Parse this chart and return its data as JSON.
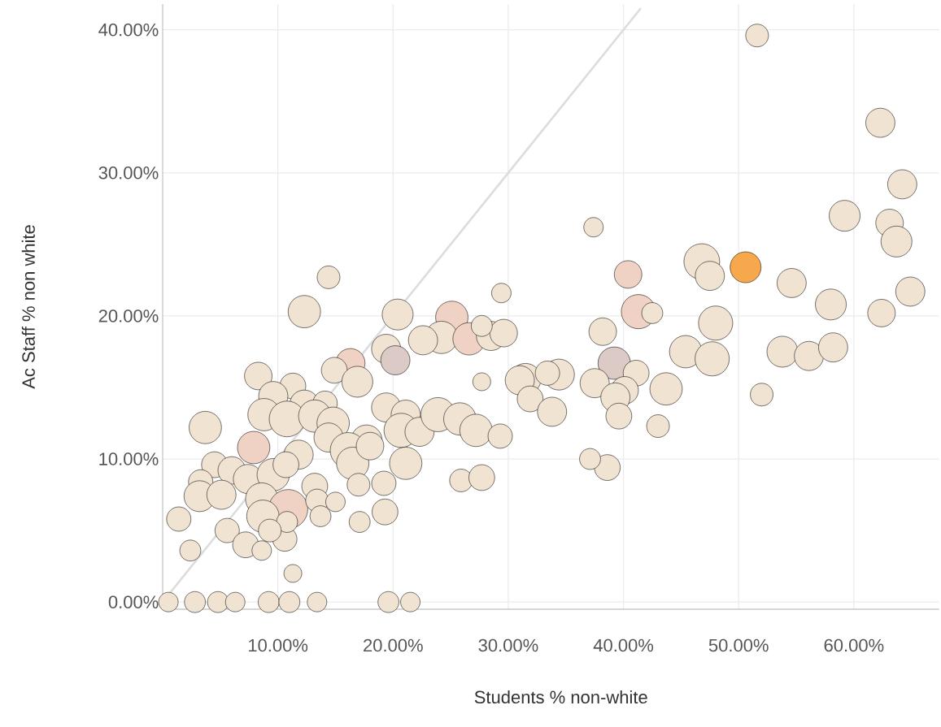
{
  "chart_data": {
    "type": "bubble",
    "xlabel": "Students % non-white",
    "ylabel": "Ac Staff % non white",
    "xlim": [
      0,
      67.4
    ],
    "ylim": [
      -0.5,
      41.8
    ],
    "xticks": [
      {
        "value": 10,
        "label": "10.00%"
      },
      {
        "value": 20,
        "label": "20.00%"
      },
      {
        "value": 30,
        "label": "30.00%"
      },
      {
        "value": 40,
        "label": "40.00%"
      },
      {
        "value": 50,
        "label": "50.00%"
      },
      {
        "value": 60,
        "label": "60.00%"
      }
    ],
    "yticks": [
      {
        "value": 0,
        "label": "0.00%"
      },
      {
        "value": 10,
        "label": "10.00%"
      },
      {
        "value": 20,
        "label": "20.00%"
      },
      {
        "value": 30,
        "label": "30.00%"
      },
      {
        "value": 40,
        "label": "40.00%"
      }
    ],
    "grid": true,
    "series": [
      {
        "x": [
          51.6,
          62.3,
          64.2,
          59.2,
          63.1,
          63.7,
          37.4,
          46.8,
          47.5,
          50.6,
          40.4,
          54.6,
          64.9,
          58.0,
          62.4,
          41.3,
          42.5,
          29.4,
          14.4,
          12.3,
          20.4,
          48.0,
          38.2,
          25.1,
          24.2,
          22.6,
          26.6,
          28.5,
          29.6,
          27.7,
          19.4,
          45.4,
          47.7,
          53.8,
          56.1,
          58.2,
          39.2,
          41.1,
          20.2,
          16.3,
          14.9,
          16.9,
          8.3,
          31.5,
          34.4,
          33.4,
          31.0,
          27.7,
          37.5,
          43.7,
          40.1,
          39.3,
          52.0,
          31.9,
          33.8,
          39.6,
          43.0,
          11.3,
          9.6,
          12.3,
          14.1,
          8.8,
          10.8,
          13.2,
          14.8,
          19.4,
          21.1,
          20.7,
          22.3,
          23.9,
          25.8,
          27.2,
          29.3,
          3.7,
          7.9,
          11.8,
          14.4,
          17.7,
          16.1,
          16.5,
          18.0,
          21.1,
          4.5,
          6.0,
          7.4,
          9.6,
          10.7,
          3.3,
          3.2,
          5.1,
          13.2,
          17.0,
          19.2,
          25.9,
          27.7,
          38.6,
          37.1,
          8.6,
          10.9,
          8.7,
          13.4,
          15.0,
          13.7,
          19.3,
          1.4,
          5.6,
          7.2,
          8.6,
          10.6,
          10.8,
          17.1,
          2.4,
          11.3,
          9.3,
          0.5,
          2.8,
          4.8,
          6.3,
          9.2,
          11.0,
          13.4,
          19.6,
          21.5
        ],
        "values": [
          39.6,
          33.5,
          29.2,
          27.0,
          26.5,
          25.2,
          26.2,
          23.8,
          22.8,
          23.4,
          22.9,
          22.3,
          21.7,
          20.8,
          20.2,
          20.3,
          20.2,
          21.6,
          22.7,
          20.3,
          20.1,
          19.5,
          18.9,
          19.9,
          18.5,
          18.3,
          18.4,
          18.6,
          18.8,
          19.3,
          17.7,
          17.5,
          17.0,
          17.5,
          17.2,
          17.8,
          16.7,
          16.0,
          16.9,
          16.7,
          16.2,
          15.4,
          15.8,
          15.6,
          15.9,
          16.0,
          15.5,
          15.4,
          15.3,
          14.9,
          14.8,
          14.3,
          14.5,
          14.2,
          13.3,
          13.0,
          12.3,
          15.1,
          14.4,
          13.8,
          13.9,
          13.1,
          12.8,
          13.0,
          12.5,
          13.6,
          13.1,
          12.0,
          11.9,
          13.1,
          12.8,
          12.0,
          11.6,
          12.2,
          10.8,
          10.3,
          11.5,
          11.3,
          10.6,
          9.7,
          10.9,
          9.7,
          9.6,
          9.2,
          8.6,
          8.9,
          9.6,
          8.4,
          7.4,
          7.5,
          8.1,
          8.2,
          8.3,
          8.5,
          8.7,
          9.4,
          10.0,
          7.2,
          6.5,
          6.0,
          7.1,
          7.0,
          6.0,
          6.3,
          5.8,
          5.0,
          4.0,
          3.6,
          4.4,
          5.6,
          5.6,
          3.6,
          2.0,
          5.0,
          0,
          0,
          0,
          0,
          0,
          0,
          0,
          0,
          0
        ],
        "sizes": [
          0.34,
          0.56,
          0.56,
          0.63,
          0.5,
          0.63,
          0.25,
          0.84,
          0.56,
          0.63,
          0.5,
          0.56,
          0.56,
          0.63,
          0.5,
          0.77,
          0.29,
          0.25,
          0.34,
          0.69,
          0.63,
          0.77,
          0.5,
          0.69,
          0.69,
          0.56,
          0.69,
          0.56,
          0.5,
          0.29,
          0.56,
          0.69,
          0.77,
          0.63,
          0.56,
          0.56,
          0.69,
          0.44,
          0.56,
          0.56,
          0.44,
          0.63,
          0.5,
          0.63,
          0.63,
          0.39,
          0.56,
          0.21,
          0.56,
          0.69,
          0.5,
          0.56,
          0.34,
          0.44,
          0.56,
          0.44,
          0.34,
          0.44,
          0.56,
          0.56,
          0.39,
          0.69,
          0.84,
          0.69,
          0.69,
          0.56,
          0.56,
          0.77,
          0.56,
          0.77,
          0.69,
          0.69,
          0.39,
          0.69,
          0.69,
          0.56,
          0.56,
          0.63,
          0.84,
          0.69,
          0.5,
          0.69,
          0.44,
          0.5,
          0.56,
          0.69,
          0.44,
          0.39,
          0.63,
          0.56,
          0.44,
          0.34,
          0.39,
          0.34,
          0.44,
          0.44,
          0.29,
          0.69,
          1,
          0.69,
          0.34,
          0.25,
          0.29,
          0.44,
          0.39,
          0.39,
          0.44,
          0.25,
          0.39,
          0.29,
          0.29,
          0.29,
          0.21,
          0.34,
          0.25,
          0.29,
          0.29,
          0.25,
          0.29,
          0.29,
          0.25,
          0.29,
          0.25
        ],
        "colors": [
          "#f1e3d2",
          "#f1e3d2",
          "#f1e3d2",
          "#f1e3d2",
          "#f1e3d2",
          "#f1e3d2",
          "#f1e3d2",
          "#f1e3d2",
          "#f1e3d2",
          "#f7a84c",
          "#efd2c3",
          "#f1e3d2",
          "#f1e3d2",
          "#f1e3d2",
          "#f1e3d2",
          "#efd2c3",
          "#f1e3d2",
          "#f1e3d2",
          "#f1e3d2",
          "#f1e3d2",
          "#f1e3d2",
          "#f1e3d2",
          "#f1e3d2",
          "#efd2c3",
          "#f1e3d2",
          "#f1e3d2",
          "#efd2c3",
          "#f1e3d2",
          "#f1e3d2",
          "#f1e3d2",
          "#f1e3d2",
          "#f1e3d2",
          "#f1e3d2",
          "#f1e3d2",
          "#f1e3d2",
          "#f1e3d2",
          "#dccac6",
          "#f1e3d2",
          "#dccac6",
          "#efd2c3",
          "#f1e3d2",
          "#f1e3d2",
          "#f1e3d2",
          "#f1e3d2",
          "#f1e3d2",
          "#f1e3d2",
          "#f1e3d2",
          "#f1e3d2",
          "#f1e3d2",
          "#f1e3d2",
          "#f1e3d2",
          "#f1e3d2",
          "#f1e3d2",
          "#f1e3d2",
          "#f1e3d2",
          "#f1e3d2",
          "#f1e3d2",
          "#f1e3d2",
          "#f1e3d2",
          "#f1e3d2",
          "#f1e3d2",
          "#f1e3d2",
          "#f1e3d2",
          "#f1e3d2",
          "#f1e3d2",
          "#f1e3d2",
          "#f1e3d2",
          "#f1e3d2",
          "#f1e3d2",
          "#f1e3d2",
          "#f1e3d2",
          "#f1e3d2",
          "#f1e3d2",
          "#f1e3d2",
          "#efd2c3",
          "#f1e3d2",
          "#f1e3d2",
          "#f1e3d2",
          "#f1e3d2",
          "#f1e3d2",
          "#f1e3d2",
          "#f1e3d2",
          "#f1e3d2",
          "#f1e3d2",
          "#f1e3d2",
          "#f1e3d2",
          "#f1e3d2",
          "#f1e3d2",
          "#f1e3d2",
          "#f1e3d2",
          "#f1e3d2",
          "#f1e3d2",
          "#f1e3d2",
          "#f1e3d2",
          "#f1e3d2",
          "#f1e3d2",
          "#f1e3d2",
          "#f1e3d2",
          "#efd2c3",
          "#f1e3d2",
          "#f1e3d2",
          "#f1e3d2",
          "#f1e3d2",
          "#f1e3d2",
          "#f1e3d2",
          "#f1e3d2",
          "#f1e3d2",
          "#f1e3d2",
          "#f1e3d2",
          "#f1e3d2",
          "#f1e3d2",
          "#f1e3d2",
          "#f1e3d2",
          "#f1e3d2",
          "#f1e3d2",
          "#f1e3d2",
          "#f1e3d2",
          "#f1e3d2",
          "#f1e3d2",
          "#f1e3d2",
          "#f1e3d2",
          "#f1e3d2",
          "#f1e3d2"
        ]
      },
      {
        "type": "line",
        "x": [
          0,
          41.5
        ],
        "values": [
          0,
          41.5
        ],
        "color": "#dddddd"
      }
    ]
  }
}
